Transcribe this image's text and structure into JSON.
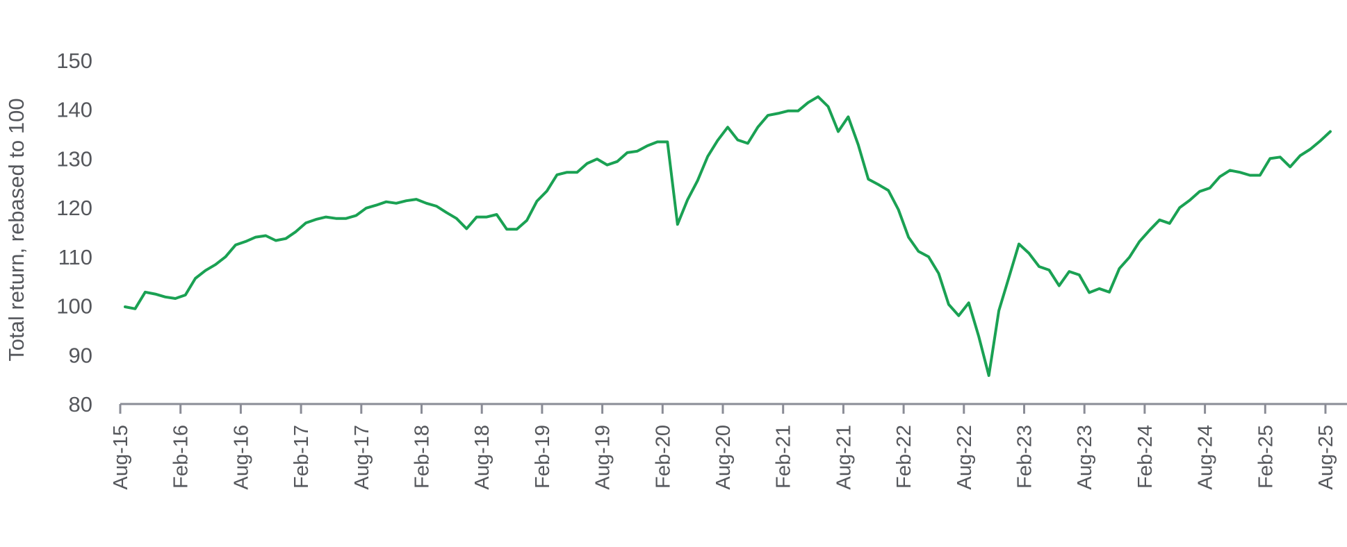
{
  "chart_data": {
    "type": "line",
    "title": "",
    "xlabel": "",
    "ylabel": "Total return, rebased to 100",
    "ylim": [
      80,
      150
    ],
    "y_ticks": [
      80,
      90,
      100,
      110,
      120,
      130,
      140,
      150
    ],
    "x_ticks": [
      "Aug-15",
      "Feb-16",
      "Aug-16",
      "Feb-17",
      "Aug-17",
      "Feb-18",
      "Aug-18",
      "Feb-19",
      "Aug-19",
      "Feb-20",
      "Aug-20",
      "Feb-21",
      "Aug-21",
      "Feb-22",
      "Aug-22",
      "Feb-23",
      "Aug-23",
      "Feb-24",
      "Aug-24",
      "Feb-25",
      "Aug-25"
    ],
    "grid": false,
    "line_color": "#1aa153",
    "axis_color": "#8a8c96",
    "series": [
      {
        "values": [
          99.8,
          99.4,
          102.8,
          102.4,
          101.8,
          101.5,
          102.2,
          105.6,
          107.2,
          108.4,
          110.0,
          112.4,
          113.1,
          114.0,
          114.3,
          113.3,
          113.7,
          115.1,
          116.9,
          117.6,
          118.1,
          117.8,
          117.8,
          118.4,
          119.9,
          120.5,
          121.2,
          120.9,
          121.4,
          121.7,
          120.9,
          120.3,
          119.0,
          117.8,
          115.7,
          118.1,
          118.1,
          118.6,
          115.6,
          115.6,
          117.4,
          121.3,
          123.4,
          126.7,
          127.2,
          127.2,
          129.0,
          129.9,
          128.7,
          129.4,
          131.2,
          131.5,
          132.6,
          133.4,
          133.4,
          116.6,
          121.6,
          125.5,
          130.4,
          133.7,
          136.4,
          133.8,
          133.1,
          136.4,
          138.8,
          139.2,
          139.7,
          139.7,
          141.4,
          142.6,
          140.6,
          135.5,
          138.5,
          132.8,
          125.8,
          124.7,
          123.5,
          119.6,
          114.0,
          111.1,
          110.0,
          106.6,
          100.3,
          98.0,
          100.6,
          93.7,
          85.8,
          99.0,
          105.8,
          112.6,
          110.7,
          108.0,
          107.3,
          104.1,
          107.0,
          106.3,
          102.7,
          103.5,
          102.8,
          107.6,
          109.9,
          113.1,
          115.4,
          117.5,
          116.8,
          120.0,
          121.5,
          123.3,
          124.0,
          126.3,
          127.6,
          127.2,
          126.6,
          126.6,
          130.0,
          130.3,
          128.3,
          130.6,
          131.9,
          133.6,
          135.5
        ]
      }
    ]
  }
}
